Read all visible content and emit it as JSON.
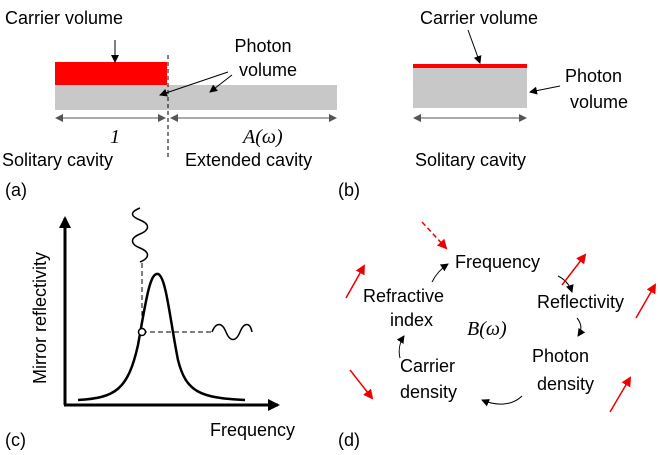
{
  "panel_a": {
    "label": "(a)",
    "carrier_volume": "Carrier volume",
    "photon_volume": [
      "Photon",
      "volume"
    ],
    "length_solitary": "1",
    "length_extended": "A(ω)",
    "solitary_cavity": "Solitary cavity",
    "extended_cavity": "Extended cavity"
  },
  "panel_b": {
    "label": "(b)",
    "carrier_volume": "Carrier volume",
    "photon_volume": [
      "Photon",
      "volume"
    ],
    "solitary_cavity": "Solitary cavity"
  },
  "panel_c": {
    "label": "(c)",
    "y_axis": "Mirror reflectivity",
    "x_axis": "Frequency"
  },
  "panel_d": {
    "label": "(d)",
    "center": "B(ω)",
    "nodes": [
      {
        "lines": [
          "Frequency"
        ]
      },
      {
        "lines": [
          "Reflectivity"
        ]
      },
      {
        "lines": [
          "Photon",
          "density"
        ]
      },
      {
        "lines": [
          "Carrier",
          "density"
        ]
      },
      {
        "lines": [
          "Refractive",
          "index"
        ]
      }
    ]
  }
}
